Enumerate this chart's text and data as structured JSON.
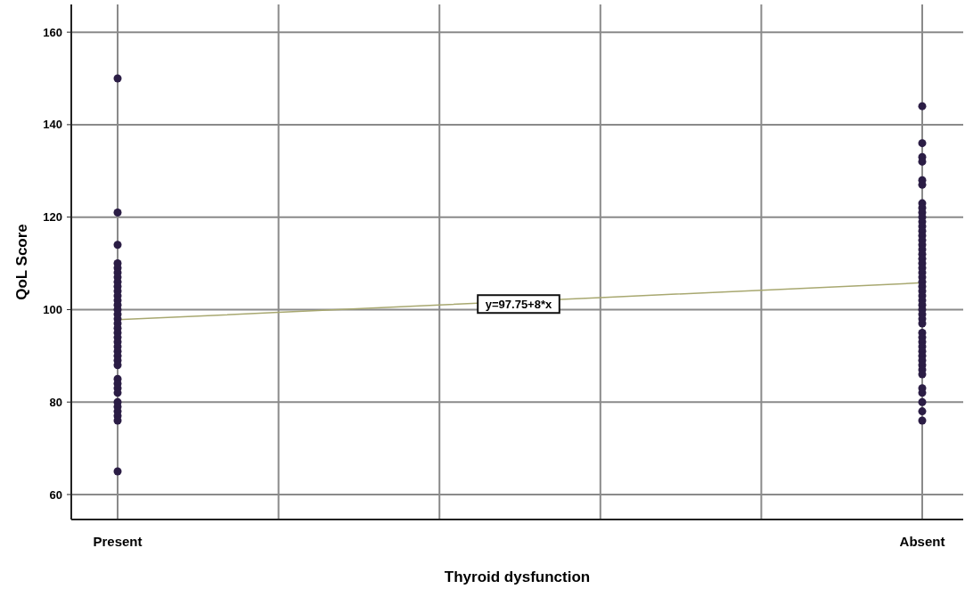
{
  "chart_data": {
    "type": "scatter",
    "xlabel": "Thyroid dysfunction",
    "ylabel": "QoL Score",
    "categories": [
      "Present",
      null,
      null,
      null,
      null,
      "Absent"
    ],
    "ylim": [
      54.6,
      166
    ],
    "yticks": [
      60,
      80,
      100,
      120,
      140,
      160
    ],
    "grid": true,
    "marker": "circle",
    "annotations": [
      "y=97.75+8*x"
    ],
    "series": [
      {
        "color": "#2b1d45",
        "x": [
          "Present",
          "Present",
          "Present",
          "Present",
          "Present",
          "Present",
          "Present",
          "Present",
          "Present",
          "Present",
          "Present",
          "Present",
          "Present",
          "Present",
          "Present",
          "Present",
          "Present",
          "Present",
          "Present",
          "Present",
          "Present",
          "Present",
          "Present",
          "Present",
          "Present",
          "Present",
          "Present",
          "Present",
          "Present",
          "Present",
          "Present",
          "Present",
          "Present",
          "Present",
          "Present",
          "Present"
        ],
        "values": [
          150,
          121,
          114,
          110,
          109,
          108,
          107,
          106,
          105,
          104,
          103,
          102,
          101,
          100,
          99,
          98,
          97,
          96,
          95,
          94,
          93,
          92,
          91,
          90,
          89,
          88,
          85,
          84,
          83,
          82,
          80,
          79,
          78,
          77,
          76,
          65
        ]
      },
      {
        "color": "#2b1d45",
        "x": [
          "Absent",
          "Absent",
          "Absent",
          "Absent",
          "Absent",
          "Absent",
          "Absent",
          "Absent",
          "Absent",
          "Absent",
          "Absent",
          "Absent",
          "Absent",
          "Absent",
          "Absent",
          "Absent",
          "Absent",
          "Absent",
          "Absent",
          "Absent",
          "Absent",
          "Absent",
          "Absent",
          "Absent",
          "Absent",
          "Absent",
          "Absent",
          "Absent",
          "Absent",
          "Absent",
          "Absent",
          "Absent",
          "Absent",
          "Absent",
          "Absent",
          "Absent",
          "Absent",
          "Absent",
          "Absent",
          "Absent",
          "Absent",
          "Absent",
          "Absent",
          "Absent",
          "Absent",
          "Absent",
          "Absent",
          "Absent"
        ],
        "values": [
          144,
          136,
          133,
          132,
          128,
          127,
          123,
          122,
          121,
          120,
          119,
          118,
          117,
          116,
          115,
          114,
          113,
          112,
          111,
          110,
          109,
          108,
          107,
          106,
          105,
          104,
          103,
          102,
          101,
          100,
          99,
          98,
          97,
          95,
          94,
          93,
          92,
          91,
          90,
          89,
          88,
          87,
          83,
          82,
          80,
          78,
          76,
          86
        ]
      },
      {
        "type": "line",
        "color": "#a8a870",
        "marker": "none",
        "values": [
          97.8,
          99.4,
          101.0,
          102.6,
          104.2,
          105.8
        ]
      }
    ]
  }
}
